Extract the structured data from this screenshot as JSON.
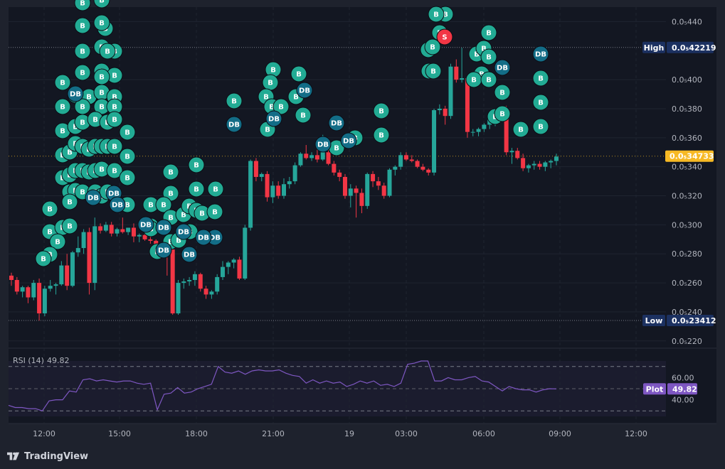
{
  "brand": {
    "name": "TradingView",
    "logo_icon": "tradingview-logo-icon"
  },
  "price_axis": {
    "ticks": [
      "0.0₅440",
      "0.0₅400",
      "0.0₅380",
      "0.0₅360",
      "0.0₅340",
      "0.0₅320",
      "0.0₅300",
      "0.0₅280",
      "0.0₅260",
      "0.0₅240",
      "0.0₅220"
    ],
    "tick_values": [
      0.44,
      0.4,
      0.38,
      0.36,
      0.34,
      0.32,
      0.3,
      0.28,
      0.26,
      0.24,
      0.22
    ],
    "high": {
      "label": "High",
      "value_text": "0.0₅42219",
      "value": 0.42219
    },
    "low": {
      "label": "Low",
      "value_text": "0.0₅23412",
      "value": 0.23412
    },
    "last": {
      "value_text": "0.0₅34733",
      "value": 0.34733
    }
  },
  "time_axis": {
    "ticks": [
      "12:00",
      "15:00",
      "18:00",
      "21:00",
      "19",
      "03:00",
      "06:00",
      "09:00",
      "12:00"
    ]
  },
  "rsi": {
    "label": "RSI (14)",
    "value_text": "49.82",
    "plot_label": "Plot",
    "levels": [
      "60.00",
      "40.00"
    ],
    "values": [
      35,
      33,
      33,
      32,
      32,
      30,
      39,
      40,
      40,
      48,
      47,
      58,
      59,
      57,
      58,
      57,
      56,
      57,
      57,
      55,
      54,
      55,
      31,
      45,
      46,
      51,
      46,
      47,
      50,
      52,
      54,
      70,
      65,
      64,
      66,
      63,
      66,
      67,
      66,
      66,
      67,
      64,
      62,
      61,
      55,
      58,
      55,
      57,
      55,
      56,
      52,
      54,
      57,
      55,
      57,
      53,
      54,
      52,
      55,
      72,
      73,
      75,
      75,
      57,
      57,
      60,
      58,
      58,
      60,
      61,
      57,
      56,
      52,
      48,
      52,
      50,
      49,
      49,
      47,
      49,
      50,
      49.82
    ]
  },
  "colors": {
    "background": "#131722",
    "frame": "#1e222d",
    "up": "#26a69a",
    "down": "#f23645",
    "buy_signal": "#22ab94",
    "dip_buy_signal": "#136d87",
    "sell_signal": "#f23645",
    "rsi_line": "#7e57c2",
    "last_price": "#f7b924",
    "hilo_tag": "#1c3161"
  },
  "chart_data": {
    "type": "candlestick",
    "title": "",
    "xlabel": "",
    "ylabel": "",
    "ylim": [
      0.215,
      0.45
    ],
    "grid": true,
    "candles": [
      [
        0.265,
        0.267,
        0.258,
        0.262
      ],
      [
        0.262,
        0.264,
        0.252,
        0.254
      ],
      [
        0.254,
        0.258,
        0.25,
        0.257
      ],
      [
        0.257,
        0.258,
        0.246,
        0.25
      ],
      [
        0.25,
        0.262,
        0.248,
        0.26
      ],
      [
        0.26,
        0.263,
        0.234,
        0.239
      ],
      [
        0.239,
        0.258,
        0.237,
        0.256
      ],
      [
        0.256,
        0.262,
        0.254,
        0.258
      ],
      [
        0.258,
        0.26,
        0.252,
        0.259
      ],
      [
        0.259,
        0.275,
        0.258,
        0.272
      ],
      [
        0.272,
        0.28,
        0.255,
        0.258
      ],
      [
        0.258,
        0.282,
        0.257,
        0.281
      ],
      [
        0.281,
        0.292,
        0.278,
        0.284
      ],
      [
        0.284,
        0.297,
        0.28,
        0.295
      ],
      [
        0.295,
        0.298,
        0.252,
        0.26
      ],
      [
        0.26,
        0.305,
        0.255,
        0.299
      ],
      [
        0.299,
        0.301,
        0.294,
        0.296
      ],
      [
        0.296,
        0.302,
        0.295,
        0.3
      ],
      [
        0.3,
        0.302,
        0.292,
        0.294
      ],
      [
        0.294,
        0.298,
        0.292,
        0.297
      ],
      [
        0.297,
        0.305,
        0.294,
        0.295
      ],
      [
        0.295,
        0.298,
        0.293,
        0.298
      ],
      [
        0.298,
        0.301,
        0.288,
        0.292
      ],
      [
        0.292,
        0.294,
        0.288,
        0.293
      ],
      [
        0.293,
        0.298,
        0.289,
        0.29
      ],
      [
        0.29,
        0.292,
        0.287,
        0.289
      ],
      [
        0.289,
        0.29,
        0.282,
        0.286
      ],
      [
        0.286,
        0.288,
        0.28,
        0.284
      ],
      [
        0.284,
        0.286,
        0.265,
        0.283
      ],
      [
        0.283,
        0.285,
        0.238,
        0.239
      ],
      [
        0.239,
        0.262,
        0.238,
        0.26
      ],
      [
        0.26,
        0.263,
        0.256,
        0.261
      ],
      [
        0.261,
        0.264,
        0.258,
        0.262
      ],
      [
        0.262,
        0.268,
        0.258,
        0.266
      ],
      [
        0.266,
        0.267,
        0.254,
        0.256
      ],
      [
        0.256,
        0.258,
        0.249,
        0.252
      ],
      [
        0.252,
        0.255,
        0.249,
        0.254
      ],
      [
        0.254,
        0.266,
        0.252,
        0.264
      ],
      [
        0.264,
        0.275,
        0.262,
        0.271
      ],
      [
        0.271,
        0.275,
        0.266,
        0.274
      ],
      [
        0.274,
        0.277,
        0.27,
        0.276
      ],
      [
        0.276,
        0.278,
        0.262,
        0.263
      ],
      [
        0.263,
        0.3,
        0.262,
        0.298
      ],
      [
        0.298,
        0.345,
        0.296,
        0.344
      ],
      [
        0.344,
        0.346,
        0.33,
        0.333
      ],
      [
        0.333,
        0.336,
        0.33,
        0.335
      ],
      [
        0.335,
        0.337,
        0.316,
        0.319
      ],
      [
        0.319,
        0.33,
        0.315,
        0.327
      ],
      [
        0.327,
        0.33,
        0.318,
        0.32
      ],
      [
        0.32,
        0.332,
        0.318,
        0.328
      ],
      [
        0.328,
        0.333,
        0.325,
        0.33
      ],
      [
        0.33,
        0.343,
        0.328,
        0.341
      ],
      [
        0.341,
        0.35,
        0.34,
        0.349
      ],
      [
        0.349,
        0.355,
        0.345,
        0.346
      ],
      [
        0.346,
        0.35,
        0.344,
        0.348
      ],
      [
        0.348,
        0.352,
        0.343,
        0.345
      ],
      [
        0.345,
        0.362,
        0.344,
        0.35
      ],
      [
        0.35,
        0.352,
        0.341,
        0.342
      ],
      [
        0.342,
        0.344,
        0.334,
        0.336
      ],
      [
        0.336,
        0.338,
        0.33,
        0.333
      ],
      [
        0.333,
        0.335,
        0.318,
        0.32
      ],
      [
        0.32,
        0.328,
        0.312,
        0.325
      ],
      [
        0.325,
        0.327,
        0.305,
        0.322
      ],
      [
        0.322,
        0.325,
        0.308,
        0.313
      ],
      [
        0.313,
        0.336,
        0.311,
        0.335
      ],
      [
        0.335,
        0.337,
        0.326,
        0.33
      ],
      [
        0.33,
        0.333,
        0.324,
        0.327
      ],
      [
        0.327,
        0.329,
        0.318,
        0.32
      ],
      [
        0.32,
        0.339,
        0.319,
        0.338
      ],
      [
        0.338,
        0.341,
        0.334,
        0.34
      ],
      [
        0.34,
        0.35,
        0.338,
        0.348
      ],
      [
        0.348,
        0.35,
        0.344,
        0.345
      ],
      [
        0.345,
        0.348,
        0.343,
        0.344
      ],
      [
        0.344,
        0.345,
        0.339,
        0.34
      ],
      [
        0.34,
        0.342,
        0.337,
        0.338
      ],
      [
        0.338,
        0.339,
        0.334,
        0.336
      ],
      [
        0.336,
        0.38,
        0.334,
        0.379
      ],
      [
        0.379,
        0.383,
        0.376,
        0.38
      ],
      [
        0.38,
        0.382,
        0.369,
        0.375
      ],
      [
        0.375,
        0.411,
        0.373,
        0.409
      ],
      [
        0.409,
        0.414,
        0.398,
        0.4
      ],
      [
        0.4,
        0.422,
        0.398,
        0.401
      ],
      [
        0.401,
        0.403,
        0.36,
        0.364
      ],
      [
        0.364,
        0.366,
        0.361,
        0.364
      ],
      [
        0.364,
        0.367,
        0.361,
        0.366
      ],
      [
        0.366,
        0.37,
        0.364,
        0.369
      ],
      [
        0.369,
        0.375,
        0.366,
        0.373
      ],
      [
        0.373,
        0.38,
        0.368,
        0.378
      ],
      [
        0.378,
        0.382,
        0.375,
        0.38
      ],
      [
        0.38,
        0.382,
        0.348,
        0.35
      ],
      [
        0.35,
        0.353,
        0.342,
        0.351
      ],
      [
        0.351,
        0.353,
        0.345,
        0.346
      ],
      [
        0.346,
        0.349,
        0.337,
        0.339
      ],
      [
        0.339,
        0.342,
        0.336,
        0.341
      ],
      [
        0.341,
        0.344,
        0.338,
        0.342
      ],
      [
        0.342,
        0.344,
        0.338,
        0.34
      ],
      [
        0.34,
        0.344,
        0.337,
        0.343
      ],
      [
        0.343,
        0.345,
        0.339,
        0.344
      ],
      [
        0.344,
        0.349,
        0.341,
        0.347
      ]
    ],
    "signals": {
      "buy": [
        [
          0.433,
          0
        ],
        [
          0.423,
          0
        ],
        [
          0.435,
          1
        ],
        [
          0.434,
          2
        ],
        [
          0.432,
          3
        ],
        [
          0.429,
          3
        ],
        [
          0.417,
          0
        ],
        [
          0.413,
          1
        ],
        [
          0.415,
          2
        ],
        [
          0.416,
          3
        ],
        [
          0.41,
          4
        ],
        [
          0.416,
          -1
        ],
        [
          0.403,
          0
        ],
        [
          0.405,
          1
        ],
        [
          0.401,
          2
        ],
        [
          0.403,
          3
        ],
        [
          0.401,
          4
        ],
        [
          0.393,
          -2
        ],
        [
          0.386,
          0
        ],
        [
          0.391,
          1
        ],
        [
          0.388,
          2
        ],
        [
          0.391,
          3
        ],
        [
          0.388,
          4
        ],
        [
          0.377,
          0
        ],
        [
          0.375,
          1
        ],
        [
          0.378,
          2
        ],
        [
          0.371,
          3
        ],
        [
          0.373,
          4
        ],
        [
          0.364,
          0
        ],
        [
          0.367,
          1
        ],
        [
          0.365,
          2
        ],
        [
          0.366,
          3
        ],
        [
          0.362,
          4
        ],
        [
          0.363,
          5
        ],
        [
          0.356,
          0
        ],
        [
          0.353,
          1
        ],
        [
          0.352,
          2
        ],
        [
          0.352,
          3
        ],
        [
          0.35,
          4
        ],
        [
          0.349,
          5
        ],
        [
          0.341,
          0
        ],
        [
          0.344,
          1
        ],
        [
          0.342,
          2
        ],
        [
          0.34,
          3
        ],
        [
          0.34,
          4
        ],
        [
          0.337,
          5
        ],
        [
          0.327,
          0
        ],
        [
          0.325,
          1
        ],
        [
          0.323,
          2
        ],
        [
          0.324,
          3
        ],
        [
          0.319,
          4
        ],
        [
          0.316,
          5
        ],
        [
          0.306,
          0
        ],
        [
          0.307,
          1
        ],
        [
          0.305,
          2
        ],
        [
          0.309,
          3
        ],
        [
          0.308,
          4
        ],
        [
          0.307,
          5
        ],
        [
          0.303,
          6
        ],
        [
          0.296,
          0
        ],
        [
          0.296,
          1
        ],
        [
          0.296,
          2
        ],
        [
          0.296,
          3
        ],
        [
          0.29,
          4
        ],
        [
          0.288,
          5
        ],
        [
          0.283,
          6
        ],
        [
          0.281,
          7
        ],
        [
          0.278,
          8
        ],
        [
          0.273,
          9
        ]
      ],
      "buy_px": []
    }
  }
}
